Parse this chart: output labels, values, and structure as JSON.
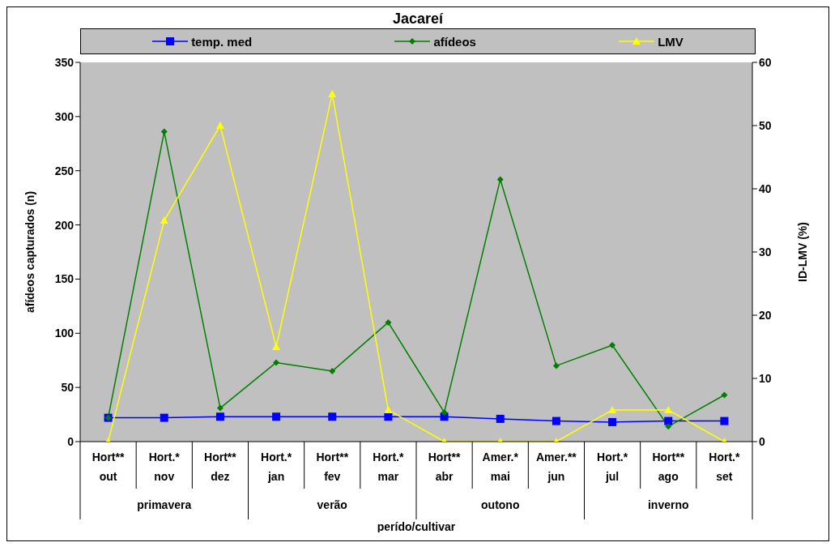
{
  "chart_data": {
    "type": "line",
    "title": "Jacareí",
    "xlabel": "perído/cultivar",
    "ylabel": "afídeos capturados (n)",
    "y2label": "ID-LMV (%)",
    "categories": [
      "Hort**\nout",
      "Hort.*\nnov",
      "Hort**\ndez",
      "Hort.*\njan",
      "Hort**\nfev",
      "Hort.*\nmar",
      "Hort**\nabr",
      "Amer.*\nmai",
      "Amer.**\njun",
      "Hort.*\njul",
      "Hort**\nago",
      "Hort.*\nset"
    ],
    "annotations": [
      "primavera",
      "verão",
      "outono",
      "inverno"
    ],
    "series": [
      {
        "name": "temp. med",
        "color": "#0000ff",
        "marker": "square",
        "values": [
          22,
          22,
          23,
          23,
          23,
          23,
          23,
          21,
          19,
          18,
          19,
          19
        ]
      },
      {
        "name": "afídeos",
        "color": "#008000",
        "marker": "diamond",
        "values": [
          22,
          286,
          31,
          73,
          65,
          110,
          27,
          242,
          70,
          89,
          14,
          43
        ]
      },
      {
        "name": "LMV",
        "color": "#ffff00",
        "marker": "triangle",
        "axis": "y2",
        "values": [
          0,
          35,
          50,
          15,
          55,
          5,
          0,
          0,
          0,
          5,
          5,
          0
        ]
      }
    ],
    "ylim": [
      0,
      350
    ],
    "yticks": [
      0,
      50,
      100,
      150,
      200,
      250,
      300,
      350
    ],
    "y2lim": [
      0,
      60
    ],
    "y2ticks": [
      0,
      10,
      20,
      30,
      40,
      50,
      60
    ],
    "grid": false,
    "legend": "top",
    "line_style": "solid"
  }
}
